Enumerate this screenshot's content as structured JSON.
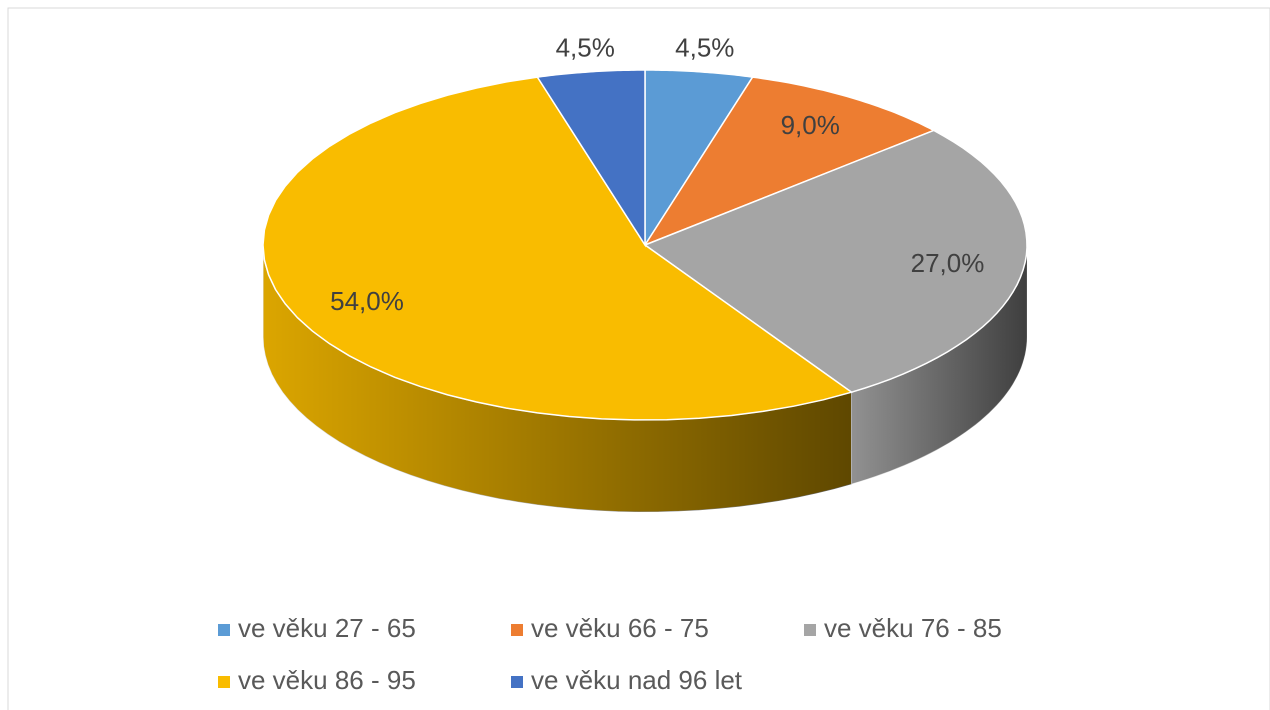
{
  "chart_data": {
    "type": "pie3d",
    "series": [
      {
        "name": "ve věku 27 - 65",
        "color": "#5b9bd5",
        "values": [
          4.5
        ],
        "value_labels": [
          "4,5%"
        ]
      },
      {
        "name": "ve věku 66 - 75",
        "color": "#ed7d31",
        "values": [
          9.0
        ],
        "value_labels": [
          "9,0%"
        ]
      },
      {
        "name": "ve věku 76 - 85",
        "color": "#a5a5a5",
        "values": [
          27.0
        ],
        "value_labels": [
          "27,0%"
        ]
      },
      {
        "name": "ve věku 86 - 95",
        "color": "#f9bc00",
        "values": [
          54.0
        ],
        "value_labels": [
          "54,0%"
        ]
      },
      {
        "name": "ve věku nad 96 let",
        "color": "#4472c4",
        "values": [
          4.5
        ],
        "value_labels": [
          "4,5%"
        ]
      }
    ],
    "legend": "bottom"
  }
}
